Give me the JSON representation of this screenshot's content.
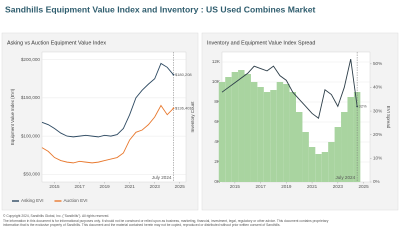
{
  "title": "Sandhills Equipment Value Index and Inventory : US Used Combines Market",
  "chart_data": [
    {
      "type": "line",
      "title": "Asking vs Auction Equipment Value Index",
      "y_label": "Equipment Value Index (EVI)",
      "x": [
        2014,
        2014.5,
        2015,
        2015.5,
        2016,
        2016.5,
        2017,
        2017.5,
        2018,
        2018.5,
        2019,
        2019.5,
        2020,
        2020.5,
        2021,
        2021.5,
        2022,
        2022.5,
        2023,
        2023.5,
        2024,
        2024.5
      ],
      "xlim": [
        2014,
        2025.5
      ],
      "xticks": [
        2015,
        2017,
        2019,
        2021,
        2023,
        2025
      ],
      "ylim": [
        40000,
        210000
      ],
      "yticks": [
        {
          "value": 50000,
          "label": "$50,000"
        },
        {
          "value": 100000,
          "label": "$100,000"
        },
        {
          "value": 150000,
          "label": "$150,000"
        },
        {
          "value": 200000,
          "label": "$200,000"
        }
      ],
      "grid": true,
      "series": [
        {
          "name": "Asking EVI",
          "color": "#2e4a62",
          "values": [
            118000,
            115000,
            110000,
            104000,
            100000,
            99000,
            100000,
            101000,
            100000,
            99000,
            101000,
            100000,
            102000,
            110000,
            128000,
            150000,
            160000,
            168000,
            175000,
            195000,
            190000,
            180208
          ],
          "value_labels": [
            null,
            null,
            null,
            null,
            null,
            null,
            null,
            null,
            null,
            null,
            null,
            null,
            null,
            null,
            null,
            null,
            null,
            null,
            null,
            null,
            null,
            "$180,208"
          ]
        },
        {
          "name": "Auction EVI",
          "color": "#e8792f",
          "values": [
            85000,
            80000,
            72000,
            68000,
            66000,
            65000,
            67000,
            66000,
            65000,
            66000,
            68000,
            70000,
            72000,
            78000,
            95000,
            105000,
            108000,
            115000,
            125000,
            140000,
            128000,
            136401
          ],
          "value_labels": [
            null,
            null,
            null,
            null,
            null,
            null,
            null,
            null,
            null,
            null,
            null,
            null,
            null,
            null,
            null,
            null,
            null,
            null,
            null,
            null,
            null,
            "$136,401"
          ]
        }
      ],
      "annotations": [
        {
          "x": 2024.5,
          "text": "July 2024"
        }
      ]
    },
    {
      "type": "combo",
      "title": "Inventory and Equipment Value Index Spread",
      "y_label": "Inventory Count",
      "y2_label": "EVI Spread",
      "x": [
        2014,
        2014.5,
        2015,
        2015.5,
        2016,
        2016.5,
        2017,
        2017.5,
        2018,
        2018.5,
        2019,
        2019.5,
        2020,
        2020.5,
        2021,
        2021.5,
        2022,
        2022.5,
        2023,
        2023.5,
        2024,
        2024.5
      ],
      "xlim": [
        2014,
        2025.5
      ],
      "xticks": [
        2015,
        2017,
        2019,
        2021,
        2023,
        2025
      ],
      "ylim": [
        0,
        13000
      ],
      "yticks": [
        {
          "value": 0,
          "label": "0K"
        },
        {
          "value": 2000,
          "label": "2K"
        },
        {
          "value": 4000,
          "label": "4K"
        },
        {
          "value": 6000,
          "label": "6K"
        },
        {
          "value": 8000,
          "label": "8K"
        },
        {
          "value": 10000,
          "label": "10K"
        },
        {
          "value": 12000,
          "label": "12K"
        }
      ],
      "y2lim": [
        0,
        55
      ],
      "y2ticks": [
        {
          "value": 0,
          "label": "0%"
        },
        {
          "value": 10,
          "label": "10%"
        },
        {
          "value": 20,
          "label": "20%"
        },
        {
          "value": 30,
          "label": "30%"
        },
        {
          "value": 40,
          "label": "40%"
        },
        {
          "value": 50,
          "label": "50%"
        }
      ],
      "grid": true,
      "series": [
        {
          "type": "bar",
          "color": "#a9d4a0",
          "values": [
            10000,
            10500,
            11000,
            11200,
            10800,
            10000,
            9500,
            9000,
            9200,
            10000,
            9800,
            9000,
            7000,
            5000,
            3500,
            2800,
            3000,
            4000,
            5500,
            7000,
            8500,
            9000
          ]
        },
        {
          "type": "line",
          "axis": "y2",
          "color": "#2e3f4a",
          "values": [
            38,
            40,
            42,
            44,
            46,
            49,
            48,
            47,
            49,
            45,
            43,
            38,
            35,
            32,
            29,
            27,
            39,
            37,
            32,
            40,
            52,
            32
          ],
          "value_labels": [
            null,
            null,
            null,
            null,
            null,
            null,
            null,
            null,
            null,
            null,
            null,
            null,
            null,
            null,
            null,
            null,
            null,
            null,
            null,
            null,
            null,
            "32%"
          ]
        }
      ],
      "annotations": [
        {
          "x": 2024.5,
          "text": "July 2024"
        }
      ]
    }
  ],
  "footer": {
    "copyright": "© Copyright 2024, Sandhills Global, Inc. (\"Sandhills\"). All rights reserved.",
    "disclaimer": [
      "The information in this document is for informational purposes only. It should not be construed or relied upon as business, marketing, financial, investment, legal, regulatory or other advice. This document contains proprietary",
      "information that is the exclusive property of Sandhills. This document and the material contained herein may not be copied, reproduced or distributed without prior written consent of Sandhills."
    ]
  }
}
